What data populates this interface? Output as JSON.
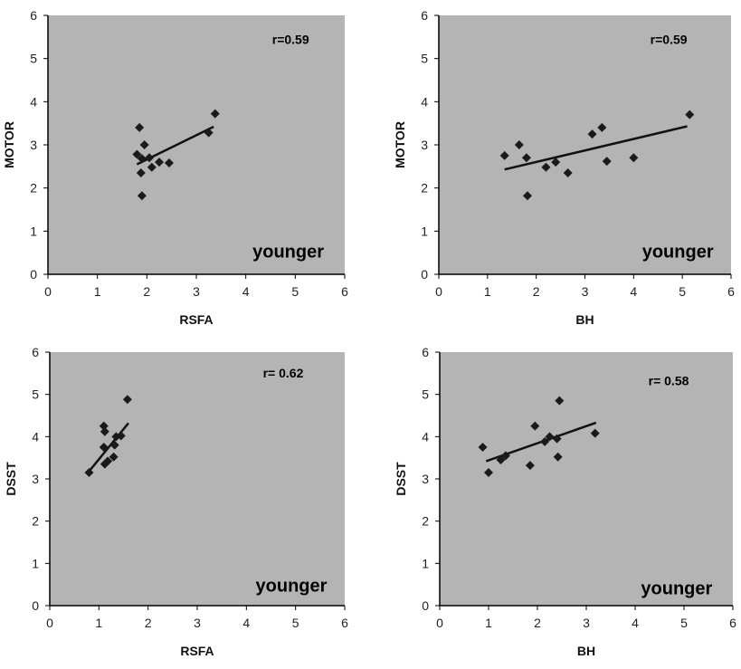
{
  "chart_data": [
    {
      "type": "scatter",
      "xlabel": "RSFA",
      "ylabel": "MOTOR",
      "xlim": [
        0,
        6
      ],
      "ylim": [
        0,
        6
      ],
      "x_ticks": [
        "0",
        "1",
        "2",
        "3",
        "4",
        "5",
        "6"
      ],
      "y_ticks": [
        "0",
        "1",
        "2",
        "3",
        "4",
        "5",
        "6"
      ],
      "annotation": "r=0.59",
      "group_label": "younger",
      "points": [
        {
          "x": 1.85,
          "y": 3.4
        },
        {
          "x": 1.95,
          "y": 3.0
        },
        {
          "x": 1.8,
          "y": 2.78
        },
        {
          "x": 1.9,
          "y": 2.68
        },
        {
          "x": 2.05,
          "y": 2.7
        },
        {
          "x": 2.25,
          "y": 2.6
        },
        {
          "x": 2.45,
          "y": 2.58
        },
        {
          "x": 2.1,
          "y": 2.48
        },
        {
          "x": 1.88,
          "y": 2.35
        },
        {
          "x": 1.9,
          "y": 1.82
        },
        {
          "x": 3.25,
          "y": 3.28
        },
        {
          "x": 3.38,
          "y": 3.72
        }
      ],
      "trendline": {
        "x": [
          1.8,
          3.35
        ],
        "y": [
          2.55,
          3.42
        ]
      },
      "grid": false,
      "background": "#b4b4b4"
    },
    {
      "type": "scatter",
      "xlabel": "BH",
      "ylabel": "MOTOR",
      "xlim": [
        0,
        6
      ],
      "ylim": [
        0,
        6
      ],
      "x_ticks": [
        "0",
        "1",
        "2",
        "3",
        "4",
        "5",
        "6"
      ],
      "y_ticks": [
        "0",
        "1",
        "2",
        "3",
        "4",
        "5",
        "6"
      ],
      "annotation": "r=0.59",
      "group_label": "younger",
      "points": [
        {
          "x": 1.35,
          "y": 2.75
        },
        {
          "x": 1.65,
          "y": 3.0
        },
        {
          "x": 1.8,
          "y": 2.7
        },
        {
          "x": 1.82,
          "y": 1.82
        },
        {
          "x": 2.2,
          "y": 2.48
        },
        {
          "x": 2.4,
          "y": 2.6
        },
        {
          "x": 2.65,
          "y": 2.35
        },
        {
          "x": 3.15,
          "y": 3.25
        },
        {
          "x": 3.35,
          "y": 3.4
        },
        {
          "x": 3.45,
          "y": 2.62
        },
        {
          "x": 4.0,
          "y": 2.7
        },
        {
          "x": 5.15,
          "y": 3.7
        }
      ],
      "trendline": {
        "x": [
          1.35,
          5.1
        ],
        "y": [
          2.43,
          3.43
        ]
      },
      "grid": false,
      "background": "#b4b4b4"
    },
    {
      "type": "scatter",
      "xlabel": "RSFA",
      "ylabel": "DSST",
      "xlim": [
        0,
        6
      ],
      "ylim": [
        0,
        6
      ],
      "x_ticks": [
        "0",
        "1",
        "2",
        "3",
        "4",
        "5",
        "6"
      ],
      "y_ticks": [
        "0",
        "1",
        "2",
        "3",
        "4",
        "5",
        "6"
      ],
      "annotation": "r= 0.62",
      "group_label": "younger",
      "points": [
        {
          "x": 0.8,
          "y": 3.15
        },
        {
          "x": 1.1,
          "y": 4.25
        },
        {
          "x": 1.12,
          "y": 4.12
        },
        {
          "x": 1.1,
          "y": 3.75
        },
        {
          "x": 1.12,
          "y": 3.35
        },
        {
          "x": 1.18,
          "y": 3.42
        },
        {
          "x": 1.3,
          "y": 3.52
        },
        {
          "x": 1.32,
          "y": 3.8
        },
        {
          "x": 1.35,
          "y": 4.0
        },
        {
          "x": 1.45,
          "y": 4.02
        },
        {
          "x": 1.58,
          "y": 4.88
        }
      ],
      "trendline": {
        "x": [
          0.8,
          1.6
        ],
        "y": [
          3.18,
          4.32
        ]
      },
      "grid": false,
      "background": "#b4b4b4"
    },
    {
      "type": "scatter",
      "xlabel": "BH",
      "ylabel": "DSST",
      "xlim": [
        0,
        6
      ],
      "ylim": [
        0,
        6
      ],
      "x_ticks": [
        "0",
        "1",
        "2",
        "3",
        "4",
        "5",
        "6"
      ],
      "y_ticks": [
        "0",
        "1",
        "2",
        "3",
        "4",
        "5",
        "6"
      ],
      "annotation": "r= 0.58",
      "group_label": "younger",
      "points": [
        {
          "x": 0.88,
          "y": 3.75
        },
        {
          "x": 1.0,
          "y": 3.15
        },
        {
          "x": 1.25,
          "y": 3.45
        },
        {
          "x": 1.35,
          "y": 3.55
        },
        {
          "x": 1.85,
          "y": 3.32
        },
        {
          "x": 1.95,
          "y": 4.25
        },
        {
          "x": 2.15,
          "y": 3.88
        },
        {
          "x": 2.25,
          "y": 4.0
        },
        {
          "x": 2.4,
          "y": 3.95
        },
        {
          "x": 2.42,
          "y": 3.52
        },
        {
          "x": 2.45,
          "y": 4.85
        },
        {
          "x": 3.18,
          "y": 4.08
        }
      ],
      "trendline": {
        "x": [
          0.95,
          3.2
        ],
        "y": [
          3.42,
          4.33
        ]
      },
      "grid": false,
      "background": "#b4b4b4"
    }
  ],
  "colors": {
    "plot_background": "#b4b4b4",
    "marker": "#1a1a1a",
    "trendline": "#111111",
    "axis": "#000000"
  }
}
